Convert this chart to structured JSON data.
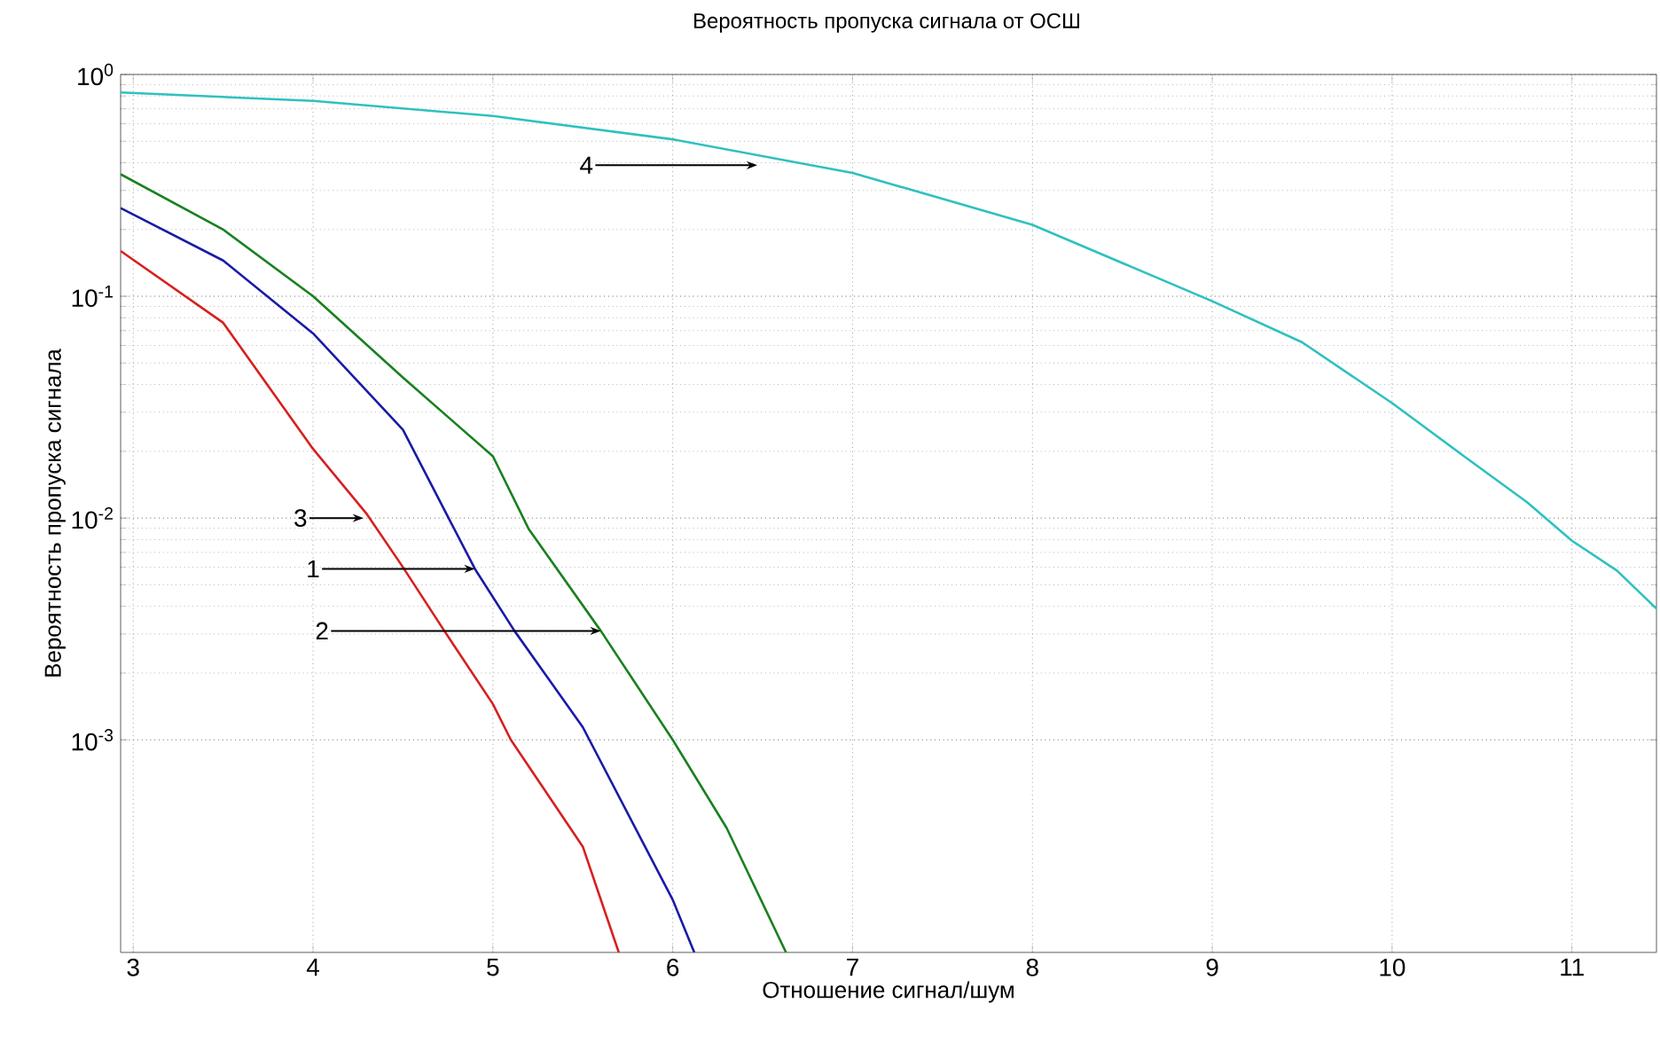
{
  "chart_data": {
    "type": "line",
    "title": "Вероятность пропуска сигнала от ОСШ",
    "xlabel": "Отношение сигнал/шум",
    "ylabel": "Вероятность пропуска сигнала",
    "log": "y",
    "grid": true,
    "line_style": "solid",
    "marker": "none",
    "xlim": [
      2.93,
      11.47
    ],
    "ylim": [
      0.00011,
      1
    ],
    "xticks": [
      3,
      4,
      5,
      6,
      7,
      8,
      9,
      10,
      11
    ],
    "yticks": [
      {
        "value": 0.001,
        "label": "10$^{-3}$"
      },
      {
        "value": 0.01,
        "label": "10$^{-2}$"
      },
      {
        "value": 0.1,
        "label": "10$^{-1}$"
      },
      {
        "value": 1,
        "label": "10$^{0}$"
      }
    ],
    "series": [
      {
        "color": "#1a1aa8",
        "x": [
          2.93,
          3.5,
          4,
          4.5,
          4.9,
          5.12,
          5.5,
          6,
          6.12
        ],
        "values": [
          0.25,
          0.145,
          0.068,
          0.025,
          0.0059,
          0.0031,
          0.00114,
          0.00019,
          0.00011
        ]
      },
      {
        "color": "#1a8020",
        "x": [
          2.93,
          3.5,
          4,
          4.5,
          5,
          5.2,
          5.6,
          6,
          6.3,
          6.63
        ],
        "values": [
          0.355,
          0.2,
          0.1,
          0.043,
          0.019,
          0.0089,
          0.0031,
          0.001,
          0.0004,
          0.00011
        ]
      },
      {
        "color": "#d62020",
        "x": [
          2.93,
          3.5,
          4,
          4.3,
          4.5,
          4.73,
          5,
          5.1,
          5.5,
          5.7
        ],
        "values": [
          0.16,
          0.076,
          0.0205,
          0.0104,
          0.006,
          0.0031,
          0.00145,
          0.001,
          0.00033,
          0.00011
        ]
      },
      {
        "color": "#30c0c0",
        "x": [
          2.93,
          4,
          5,
          6,
          7,
          8,
          9,
          9.5,
          10,
          10.4,
          10.75,
          11,
          11.25,
          11.47
        ],
        "values": [
          0.83,
          0.76,
          0.65,
          0.51,
          0.36,
          0.21,
          0.095,
          0.062,
          0.033,
          0.019,
          0.0118,
          0.0079,
          0.0058,
          0.0039
        ]
      }
    ],
    "annotations": [
      {
        "text": "1",
        "x": 4.9,
        "y": 0.0059
      },
      {
        "text": "2",
        "x": 5.6,
        "y": 0.0031
      },
      {
        "text": "3",
        "x": 4.28,
        "y": 0.01
      },
      {
        "text": "4",
        "x": 6.47,
        "y": 0.39
      }
    ]
  }
}
